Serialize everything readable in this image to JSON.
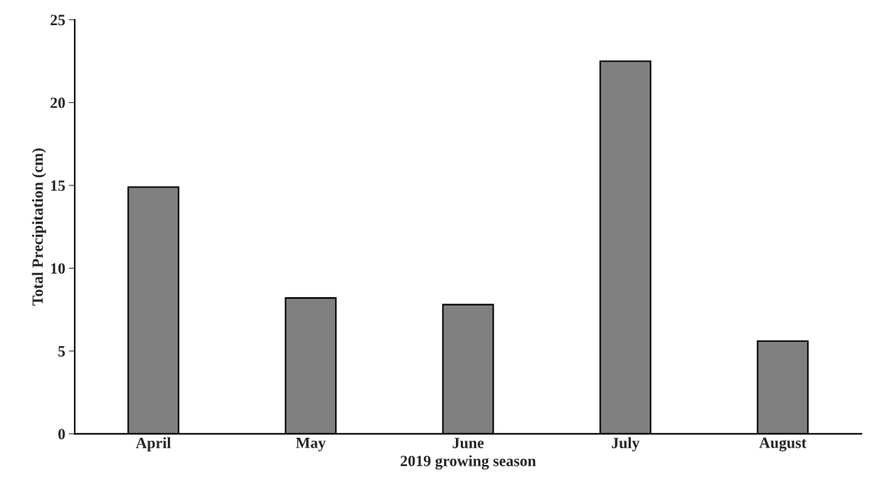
{
  "chart_data": {
    "type": "bar",
    "xlabel": "2019 growing season",
    "ylabel": "Total Precipitation (cm)",
    "categories": [
      "April",
      "May",
      "June",
      "July",
      "August"
    ],
    "values": [
      14.9,
      8.2,
      7.8,
      22.5,
      5.6
    ],
    "color": "#808080",
    "ylim": [
      0,
      25
    ],
    "yticks": [
      0,
      5,
      10,
      15,
      20,
      25
    ],
    "grid": false,
    "legend": false
  }
}
